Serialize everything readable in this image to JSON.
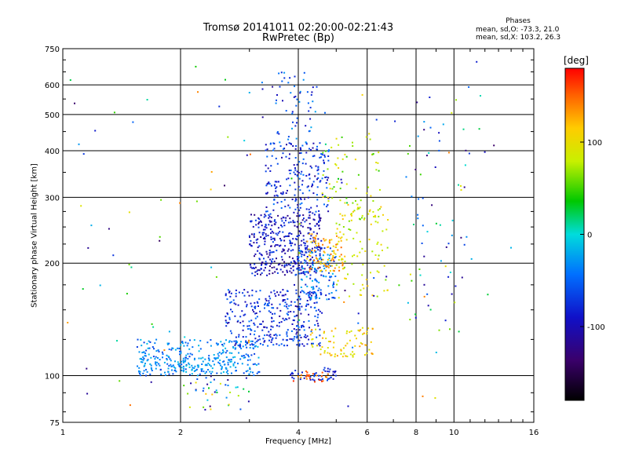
{
  "chart_data": {
    "type": "scatter",
    "title": "Tromsø 20141011 02:20:00-02:21:43",
    "subtitle": "RwPretec (Bp)",
    "xlabel": "Frequency [MHz]",
    "ylabel": "Stationary phase Virtual Height [km]",
    "xscale": "log",
    "yscale": "log",
    "xlim": [
      1,
      16
    ],
    "ylim": [
      75,
      750
    ],
    "xticks": [
      1,
      2,
      4,
      6,
      8,
      10,
      16
    ],
    "xtick_labels": [
      "1",
      "2",
      "4",
      "6",
      "8",
      "10",
      "16"
    ],
    "yticks": [
      75,
      100,
      200,
      300,
      400,
      500,
      600,
      750
    ],
    "ytick_labels": [
      "75",
      "100",
      "200",
      "300",
      "400",
      "500",
      "600",
      "750"
    ],
    "grid": true,
    "legend": "colorbar-right",
    "stats": {
      "heading": "Phases",
      "line1": "mean, sd,O: -73.3, 21.0",
      "line2": "mean, sd,X: 103.2, 26.3"
    },
    "colorbar": {
      "unit": "[deg]",
      "range": [
        -180,
        180
      ],
      "ticks": [
        100,
        0,
        -100
      ],
      "tick_labels": [
        "100",
        "0",
        "-100"
      ]
    },
    "series": [
      {
        "clusters": [
          {
            "f": [
              1.55,
              3.2
            ],
            "h": [
              100,
              125
            ],
            "phase": [
              -70,
              -10
            ],
            "n": 260
          },
          {
            "f": [
              1.55,
              2.8
            ],
            "h": [
              102,
              112
            ],
            "phase": [
              -40,
              -10
            ],
            "n": 90
          },
          {
            "f": [
              2.6,
              4.6
            ],
            "h": [
              120,
              170
            ],
            "phase": [
              -110,
              -40
            ],
            "n": 330
          },
          {
            "f": [
              3.0,
              4.6
            ],
            "h": [
              185,
              270
            ],
            "phase": [
              -125,
              -60
            ],
            "n": 380
          },
          {
            "f": [
              3.3,
              4.8
            ],
            "h": [
              270,
              420
            ],
            "phase": [
              -110,
              -40
            ],
            "n": 210
          },
          {
            "f": [
              3.5,
              4.5
            ],
            "h": [
              420,
              650
            ],
            "phase": [
              -100,
              -20
            ],
            "n": 55
          },
          {
            "f": [
              4.0,
              5.0
            ],
            "h": [
              160,
              220
            ],
            "phase": [
              -90,
              -10
            ],
            "n": 130
          },
          {
            "f": [
              3.8,
              5.0
            ],
            "h": [
              97,
              105
            ],
            "phase": [
              -100,
              -60
            ],
            "n": 45
          }
        ]
      },
      {
        "clusters": [
          {
            "f": [
              4.2,
              5.2
            ],
            "h": [
              190,
              240
            ],
            "phase": [
              100,
              150
            ],
            "n": 90
          },
          {
            "f": [
              4.3,
              6.2
            ],
            "h": [
              112,
              135
            ],
            "phase": [
              80,
              140
            ],
            "n": 80
          },
          {
            "f": [
              5.0,
              6.8
            ],
            "h": [
              160,
              290
            ],
            "phase": [
              60,
              120
            ],
            "n": 110
          },
          {
            "f": [
              4.6,
              6.5
            ],
            "h": [
              290,
              450
            ],
            "phase": [
              40,
              110
            ],
            "n": 55
          },
          {
            "f": [
              3.8,
              4.8
            ],
            "h": [
              96,
              103
            ],
            "phase": [
              130,
              170
            ],
            "n": 25
          }
        ]
      },
      {
        "clusters": [
          {
            "f": [
              1.0,
              14.0
            ],
            "h": [
              80,
              700
            ],
            "phase": [
              -150,
              150
            ],
            "n": 120
          },
          {
            "f": [
              2.0,
              3.0
            ],
            "h": [
              80,
              100
            ],
            "phase": [
              -140,
              120
            ],
            "n": 40
          },
          {
            "f": [
              7.5,
              11
            ],
            "h": [
              130,
              650
            ],
            "phase": [
              -130,
              100
            ],
            "n": 60
          }
        ]
      }
    ]
  }
}
